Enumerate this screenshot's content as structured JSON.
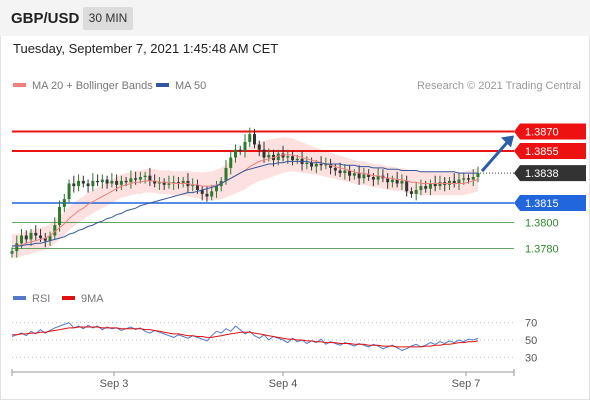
{
  "header": {
    "symbol": "GBP/USD",
    "timeframe": "30 MIN"
  },
  "datetime": "Tuesday, September 7, 2021 1:45:48 AM CET",
  "legend": {
    "ma20_label": "MA 20 + Bollinger Bands",
    "ma50_label": "MA 50",
    "credit": "Research © 2021 Trading Central"
  },
  "rsi_legend": {
    "rsi_label": "RSI",
    "ma_label": "9MA"
  },
  "colors": {
    "up_candle": "#2d7a2d",
    "down_candle": "#333333",
    "ma20": "#f08080",
    "ma50": "#33569e",
    "bollinger_fill": "#fde1e1",
    "resistance": "#ee1111",
    "support": "#2266dd",
    "target": "#2f8a2f",
    "arrow": "#2b5ea7",
    "last_price_bg": "#333333"
  },
  "chart_data": [
    {
      "type": "candlestick",
      "title": "GBP/USD",
      "x_labels": [
        "Sep 3",
        "Sep 4",
        "Sep 7"
      ],
      "ylim": [
        1.3765,
        1.3885
      ],
      "levels": [
        {
          "name": "resistance_2",
          "value": 1.387,
          "label": "1.3870",
          "kind": "resistance"
        },
        {
          "name": "resistance_1",
          "value": 1.3855,
          "label": "1.3855",
          "kind": "resistance"
        },
        {
          "name": "last",
          "value": 1.3838,
          "label": "1.3838",
          "kind": "last"
        },
        {
          "name": "pivot",
          "value": 1.3815,
          "label": "1.3815",
          "kind": "pivot"
        },
        {
          "name": "support_1",
          "value": 1.38,
          "label": "1.3800",
          "kind": "support"
        },
        {
          "name": "support_2",
          "value": 1.378,
          "label": "1.3780",
          "kind": "support"
        }
      ],
      "close": [
        1.3778,
        1.3784,
        1.379,
        1.3787,
        1.3792,
        1.379,
        1.3788,
        1.3786,
        1.379,
        1.3798,
        1.3812,
        1.3818,
        1.383,
        1.3828,
        1.3832,
        1.383,
        1.3828,
        1.3832,
        1.3831,
        1.3833,
        1.383,
        1.3832,
        1.3829,
        1.3832,
        1.3831,
        1.3834,
        1.3833,
        1.3835,
        1.3836,
        1.3832,
        1.383,
        1.3831,
        1.3829,
        1.383,
        1.3831,
        1.383,
        1.3832,
        1.3828,
        1.3829,
        1.3825,
        1.3822,
        1.382,
        1.3824,
        1.3828,
        1.3832,
        1.3842,
        1.385,
        1.3856,
        1.3855,
        1.3862,
        1.3868,
        1.386,
        1.3856,
        1.385,
        1.3852,
        1.3848,
        1.3853,
        1.385,
        1.3851,
        1.3848,
        1.3849,
        1.3845,
        1.3846,
        1.3843,
        1.3845,
        1.3844,
        1.3845,
        1.3842,
        1.384,
        1.3838,
        1.384,
        1.3836,
        1.3838,
        1.3834,
        1.3837,
        1.3835,
        1.3833,
        1.3836,
        1.3834,
        1.3831,
        1.3833,
        1.383,
        1.3832,
        1.3824,
        1.3822,
        1.3825,
        1.3828,
        1.3826,
        1.383,
        1.3828,
        1.3831,
        1.3829,
        1.3832,
        1.383,
        1.3833,
        1.3834,
        1.3833,
        1.3835,
        1.3838
      ],
      "ma20": [
        1.3782,
        1.3782,
        1.3783,
        1.3784,
        1.3785,
        1.3786,
        1.3787,
        1.3788,
        1.379,
        1.3793,
        1.3796,
        1.3799,
        1.3803,
        1.3806,
        1.3809,
        1.3811,
        1.3814,
        1.3816,
        1.3818,
        1.382,
        1.3822,
        1.3824,
        1.3826,
        1.3828,
        1.3829,
        1.383,
        1.3831,
        1.3831,
        1.3832,
        1.3832,
        1.3832,
        1.3831,
        1.3831,
        1.3831,
        1.383,
        1.383,
        1.383,
        1.383,
        1.3829,
        1.3829,
        1.3828,
        1.3828,
        1.3828,
        1.3829,
        1.383,
        1.3832,
        1.3834,
        1.3836,
        1.3838,
        1.384,
        1.3843,
        1.3845,
        1.3847,
        1.3848,
        1.3849,
        1.385,
        1.3851,
        1.3852,
        1.3852,
        1.3852,
        1.3851,
        1.385,
        1.3849,
        1.3848,
        1.3847,
        1.3846,
        1.3845,
        1.3844,
        1.3843,
        1.3842,
        1.3841,
        1.384,
        1.3839,
        1.3838,
        1.3838,
        1.3837,
        1.3836,
        1.3836,
        1.3835,
        1.3834,
        1.3834,
        1.3833,
        1.3833,
        1.3832,
        1.3831,
        1.3831,
        1.383,
        1.383,
        1.383,
        1.383,
        1.383,
        1.383,
        1.383,
        1.383,
        1.383,
        1.383,
        1.3831,
        1.3832,
        1.3833
      ],
      "ma50": [
        1.3782,
        1.3782,
        1.3782,
        1.3783,
        1.3783,
        1.3784,
        1.3784,
        1.3785,
        1.3786,
        1.3787,
        1.3788,
        1.3789,
        1.3791,
        1.3792,
        1.3794,
        1.3795,
        1.3797,
        1.3798,
        1.38,
        1.3801,
        1.3803,
        1.3804,
        1.3806,
        1.3807,
        1.3809,
        1.381,
        1.3811,
        1.3813,
        1.3814,
        1.3815,
        1.3816,
        1.3817,
        1.3818,
        1.3819,
        1.382,
        1.3821,
        1.3822,
        1.3823,
        1.3823,
        1.3824,
        1.3825,
        1.3826,
        1.3827,
        1.3828,
        1.383,
        1.3832,
        1.3834,
        1.3836,
        1.3838,
        1.384,
        1.3841,
        1.3842,
        1.3843,
        1.3844,
        1.3845,
        1.3845,
        1.3846,
        1.3846,
        1.3847,
        1.3847,
        1.3847,
        1.3847,
        1.3847,
        1.3846,
        1.3846,
        1.3846,
        1.3845,
        1.3845,
        1.3845,
        1.3845,
        1.3844,
        1.3844,
        1.3844,
        1.3843,
        1.3843,
        1.3843,
        1.3842,
        1.3842,
        1.3842,
        1.3841,
        1.3841,
        1.3841,
        1.384,
        1.384,
        1.384,
        1.384,
        1.3839,
        1.3839,
        1.3839,
        1.3839,
        1.3839,
        1.3839,
        1.3839,
        1.3839,
        1.3838,
        1.3838,
        1.3838,
        1.3838,
        1.3838
      ]
    },
    {
      "type": "line",
      "title": "RSI",
      "ylim": [
        20,
        80
      ],
      "y_ticks": [
        30,
        50,
        70
      ],
      "series": [
        {
          "name": "RSI",
          "values": [
            54,
            56,
            58,
            55,
            60,
            57,
            62,
            58,
            61,
            64,
            66,
            68,
            70,
            64,
            66,
            63,
            67,
            64,
            66,
            62,
            65,
            63,
            64,
            61,
            63,
            65,
            62,
            64,
            60,
            58,
            61,
            59,
            57,
            55,
            53,
            56,
            54,
            52,
            55,
            53,
            51,
            49,
            55,
            60,
            58,
            63,
            60,
            66,
            62,
            57,
            60,
            55,
            52,
            56,
            50,
            54,
            52,
            50,
            47,
            52,
            48,
            50,
            46,
            49,
            47,
            51,
            45,
            48,
            46,
            44,
            47,
            45,
            43,
            46,
            44,
            42,
            45,
            43,
            40,
            42,
            44,
            41,
            38,
            40,
            43,
            45,
            42,
            44,
            47,
            45,
            48,
            46,
            49,
            47,
            50,
            48,
            51,
            50,
            52
          ]
        },
        {
          "name": "9MA",
          "values": [
            56,
            56,
            57,
            57,
            58,
            58,
            59,
            59,
            60,
            61,
            62,
            63,
            64,
            64,
            65,
            65,
            65,
            65,
            65,
            64,
            64,
            64,
            64,
            63,
            63,
            63,
            63,
            63,
            62,
            62,
            61,
            60,
            59,
            58,
            57,
            57,
            56,
            55,
            55,
            54,
            54,
            53,
            53,
            54,
            55,
            56,
            57,
            58,
            59,
            59,
            59,
            58,
            57,
            56,
            55,
            54,
            53,
            52,
            51,
            51,
            50,
            50,
            49,
            49,
            48,
            48,
            47,
            47,
            47,
            46,
            46,
            46,
            45,
            45,
            45,
            44,
            44,
            44,
            43,
            43,
            43,
            42,
            42,
            42,
            42,
            42,
            42,
            43,
            43,
            44,
            44,
            45,
            45,
            46,
            47,
            47,
            48,
            48,
            49
          ]
        }
      ]
    }
  ]
}
